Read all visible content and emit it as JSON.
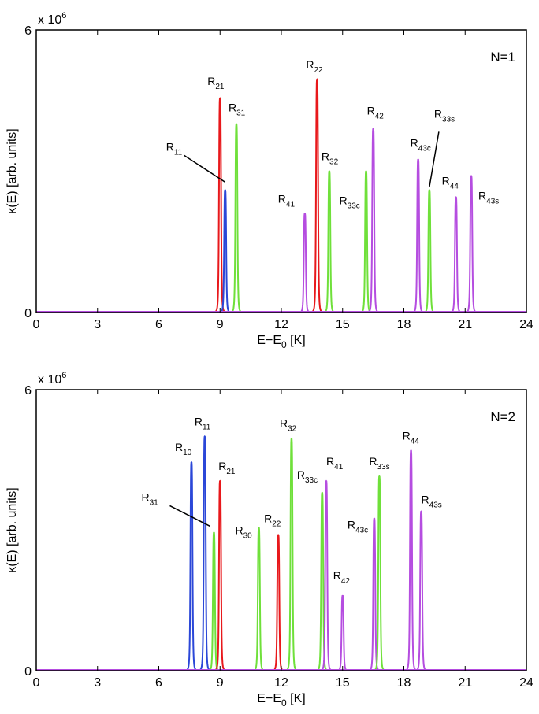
{
  "chart_data": [
    {
      "type": "line",
      "panel_label": "N=1",
      "xlabel_main": "E−E",
      "xlabel_sub": "0",
      "xlabel_tail": " [K]",
      "ylabel": "κ(E) [arb. units]",
      "y_scale_prefix": "x 10",
      "y_scale_exp": "6",
      "xlim": [
        0,
        24
      ],
      "ylim": [
        0,
        6
      ],
      "xticks": [
        "0",
        "3",
        "6",
        "9",
        "12",
        "15",
        "18",
        "21",
        "24"
      ],
      "yticks": [
        "0",
        "6"
      ],
      "colors": {
        "red": "#e8181b",
        "blue": "#2b47d8",
        "green": "#6fe03a",
        "purple": "#b54de0"
      },
      "peaks": [
        {
          "label": "R",
          "sub": "21",
          "x": 9.0,
          "height": 4.55,
          "color": "red"
        },
        {
          "label": "R",
          "sub": "11",
          "x": 9.25,
          "height": 2.6,
          "color": "blue"
        },
        {
          "label": "R",
          "sub": "31",
          "x": 9.8,
          "height": 4.0,
          "color": "green"
        },
        {
          "label": "R",
          "sub": "41",
          "x": 13.15,
          "height": 2.1,
          "color": "purple"
        },
        {
          "label": "R",
          "sub": "22",
          "x": 13.75,
          "height": 4.95,
          "color": "red"
        },
        {
          "label": "R",
          "sub": "32",
          "x": 14.35,
          "height": 3.0,
          "color": "green"
        },
        {
          "label": "R",
          "sub": "33c",
          "x": 16.15,
          "height": 3.0,
          "color": "green"
        },
        {
          "label": "R",
          "sub": "42",
          "x": 16.5,
          "height": 3.9,
          "color": "purple"
        },
        {
          "label": "R",
          "sub": "43c",
          "x": 18.7,
          "height": 3.25,
          "color": "purple"
        },
        {
          "label": "R",
          "sub": "33s",
          "x": 19.25,
          "height": 2.6,
          "color": "green"
        },
        {
          "label": "R",
          "sub": "44",
          "x": 20.55,
          "height": 2.45,
          "color": "purple"
        },
        {
          "label": "R",
          "sub": "43s",
          "x": 21.3,
          "height": 2.9,
          "color": "purple"
        }
      ]
    },
    {
      "type": "line",
      "panel_label": "N=2",
      "xlabel_main": "E−E",
      "xlabel_sub": "0",
      "xlabel_tail": " [K]",
      "ylabel": "κ(E) [arb. units]",
      "y_scale_prefix": "x 10",
      "y_scale_exp": "6",
      "xlim": [
        0,
        24
      ],
      "ylim": [
        0,
        6
      ],
      "xticks": [
        "0",
        "3",
        "6",
        "9",
        "12",
        "15",
        "18",
        "21",
        "24"
      ],
      "yticks": [
        "0",
        "6"
      ],
      "colors": {
        "red": "#e8181b",
        "blue": "#2b47d8",
        "green": "#6fe03a",
        "purple": "#b54de0"
      },
      "peaks": [
        {
          "label": "R",
          "sub": "10",
          "x": 7.6,
          "height": 4.45,
          "color": "blue"
        },
        {
          "label": "R",
          "sub": "11",
          "x": 8.25,
          "height": 5.0,
          "color": "blue"
        },
        {
          "label": "R",
          "sub": "31",
          "x": 8.7,
          "height": 2.95,
          "color": "green"
        },
        {
          "label": "R",
          "sub": "21",
          "x": 9.0,
          "height": 4.05,
          "color": "red"
        },
        {
          "label": "R",
          "sub": "30",
          "x": 10.9,
          "height": 3.05,
          "color": "green"
        },
        {
          "label": "R",
          "sub": "22",
          "x": 11.85,
          "height": 2.9,
          "color": "red"
        },
        {
          "label": "R",
          "sub": "32",
          "x": 12.5,
          "height": 4.95,
          "color": "green"
        },
        {
          "label": "R",
          "sub": "33c",
          "x": 14.0,
          "height": 3.8,
          "color": "green"
        },
        {
          "label": "R",
          "sub": "41",
          "x": 14.2,
          "height": 4.05,
          "color": "purple"
        },
        {
          "label": "R",
          "sub": "42",
          "x": 15.0,
          "height": 1.6,
          "color": "purple"
        },
        {
          "label": "R",
          "sub": "43c",
          "x": 16.55,
          "height": 3.25,
          "color": "purple"
        },
        {
          "label": "R",
          "sub": "33s",
          "x": 16.8,
          "height": 4.15,
          "color": "green"
        },
        {
          "label": "R",
          "sub": "44",
          "x": 18.35,
          "height": 4.7,
          "color": "purple"
        },
        {
          "label": "R",
          "sub": "43s",
          "x": 18.85,
          "height": 3.4,
          "color": "purple"
        }
      ]
    }
  ]
}
